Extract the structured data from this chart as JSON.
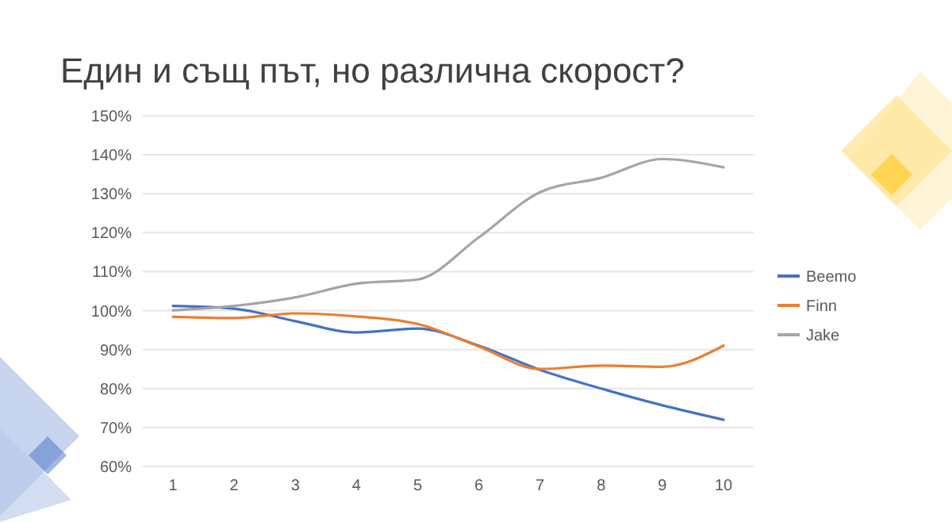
{
  "chart_data": {
    "type": "line",
    "title": "Един и същ път, но различна скорост?",
    "categories": [
      "1",
      "2",
      "3",
      "4",
      "5",
      "6",
      "7",
      "8",
      "9",
      "10"
    ],
    "series": [
      {
        "name": "Beemo",
        "color": "#4472c4",
        "values": [
          101.2,
          100.5,
          97.3,
          94.4,
          95.4,
          91,
          84.8,
          80,
          75.7,
          72
        ]
      },
      {
        "name": "Finn",
        "color": "#ed7d31",
        "values": [
          98.4,
          98.1,
          99.3,
          98.5,
          96.6,
          90.8,
          85,
          85.9,
          85.6,
          91
        ]
      },
      {
        "name": "Jake",
        "color": "#a5a5a5",
        "values": [
          100.1,
          101.2,
          103.4,
          106.9,
          108,
          118.8,
          130.4,
          134.1,
          138.9,
          136.8
        ]
      }
    ],
    "ylim": [
      60,
      150
    ],
    "yticks": [
      {
        "value": 60,
        "label": "60%"
      },
      {
        "value": 70,
        "label": "70%"
      },
      {
        "value": 80,
        "label": "80%"
      },
      {
        "value": 90,
        "label": "90%"
      },
      {
        "value": 100,
        "label": "100%"
      },
      {
        "value": 110,
        "label": "110%"
      },
      {
        "value": 120,
        "label": "120%"
      },
      {
        "value": 130,
        "label": "130%"
      },
      {
        "value": 140,
        "label": "140%"
      },
      {
        "value": 150,
        "label": "150%"
      }
    ],
    "grid": "y",
    "legend": "right",
    "marker": "none",
    "line_style": "solid"
  }
}
